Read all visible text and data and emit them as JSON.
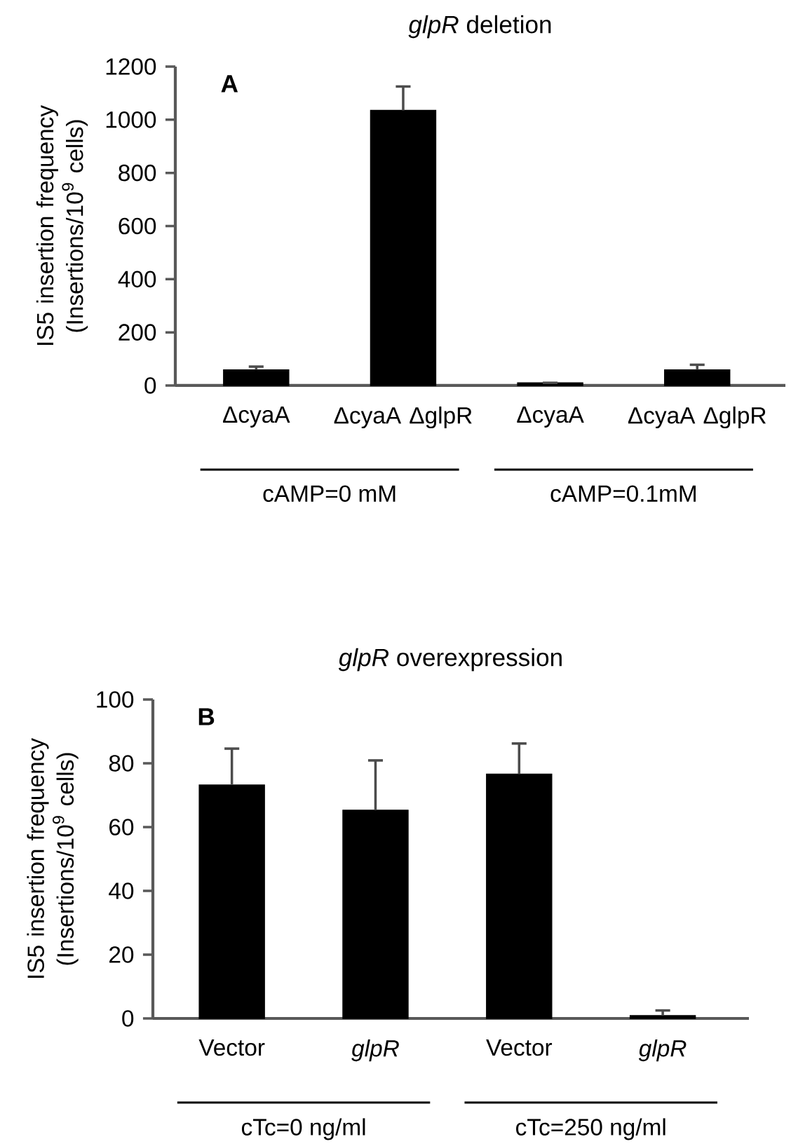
{
  "chart_data": [
    {
      "type": "bar",
      "title": "*glpR* deletion",
      "ylabel": "IS5 insertion frequency (Insertions/10$^{9}$ cells)",
      "categories": [
        "ΔcyaA",
        "ΔcyaA ΔglpR",
        "ΔcyaA",
        "ΔcyaA ΔglpR"
      ],
      "values": [
        59,
        1035,
        10,
        59
      ],
      "errors": [
        12,
        90,
        null,
        19
      ],
      "color": "#000000",
      "ylim": [
        0,
        1200
      ],
      "yticks": [
        0,
        200,
        400,
        600,
        800,
        1000,
        1200
      ],
      "annotations": [
        "A",
        "cAMP=0 mM",
        "cAMP=0.1mM"
      ]
    },
    {
      "type": "bar",
      "title": "*glpR* overexpression",
      "ylabel": "IS5 insertion frequency (Insertions/10$^{9}$ cells)",
      "categories": [
        "Vector",
        "*glpR*",
        "Vector",
        "*glpR*"
      ],
      "values": [
        73.2,
        65.3,
        76.6,
        0.9
      ],
      "errors": [
        11.4,
        15.6,
        9.6,
        1.6
      ],
      "color": "#000000",
      "ylim": [
        0,
        100
      ],
      "yticks": [
        0,
        20,
        40,
        60,
        80,
        100
      ],
      "annotations": [
        "B",
        "cTc=0 ng/ml",
        "cTc=250 ng/ml"
      ]
    }
  ]
}
